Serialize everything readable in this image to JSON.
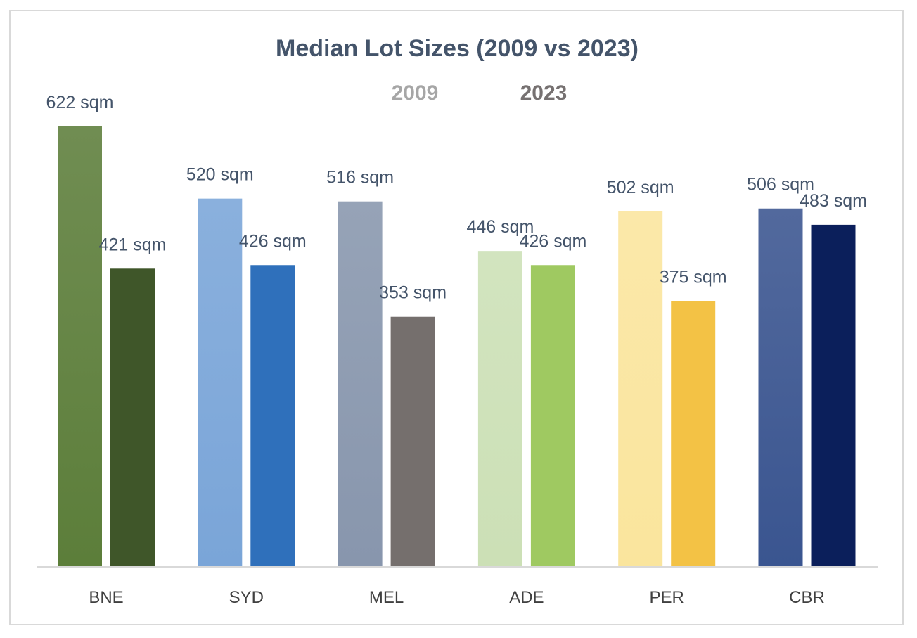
{
  "chart_data": {
    "type": "bar",
    "title": "Median Lot Sizes (2009 vs 2023)",
    "xlabel": "",
    "ylabel": "",
    "ylim": [
      0,
      650
    ],
    "grid": false,
    "legend_position": "top-center",
    "legend": [
      {
        "label": "2009",
        "color": "#a6a6a6"
      },
      {
        "label": "2023",
        "color": "#767171"
      }
    ],
    "categories": [
      "BNE",
      "SYD",
      "MEL",
      "ADE",
      "PER",
      "CBR"
    ],
    "series": [
      {
        "name": "2009",
        "values": [
          622,
          520,
          516,
          446,
          502,
          506
        ],
        "labels": [
          "622 sqm",
          "520 sqm",
          "516 sqm",
          "446 sqm",
          "502 sqm",
          "506 sqm"
        ],
        "colors": [
          "#5c7e3a",
          "#7aa5d8",
          "#8896ad",
          "#cce0b6",
          "#fae59d",
          "#3a5590"
        ]
      },
      {
        "name": "2023",
        "values": [
          421,
          426,
          353,
          426,
          375,
          483
        ],
        "labels": [
          "421 sqm",
          "426 sqm",
          "353 sqm",
          "426 sqm",
          "375 sqm",
          "483 sqm"
        ],
        "colors": [
          "#3f5629",
          "#2f70bb",
          "#756f6d",
          "#9fc961",
          "#f3c245",
          "#0b1f5b"
        ]
      }
    ]
  }
}
